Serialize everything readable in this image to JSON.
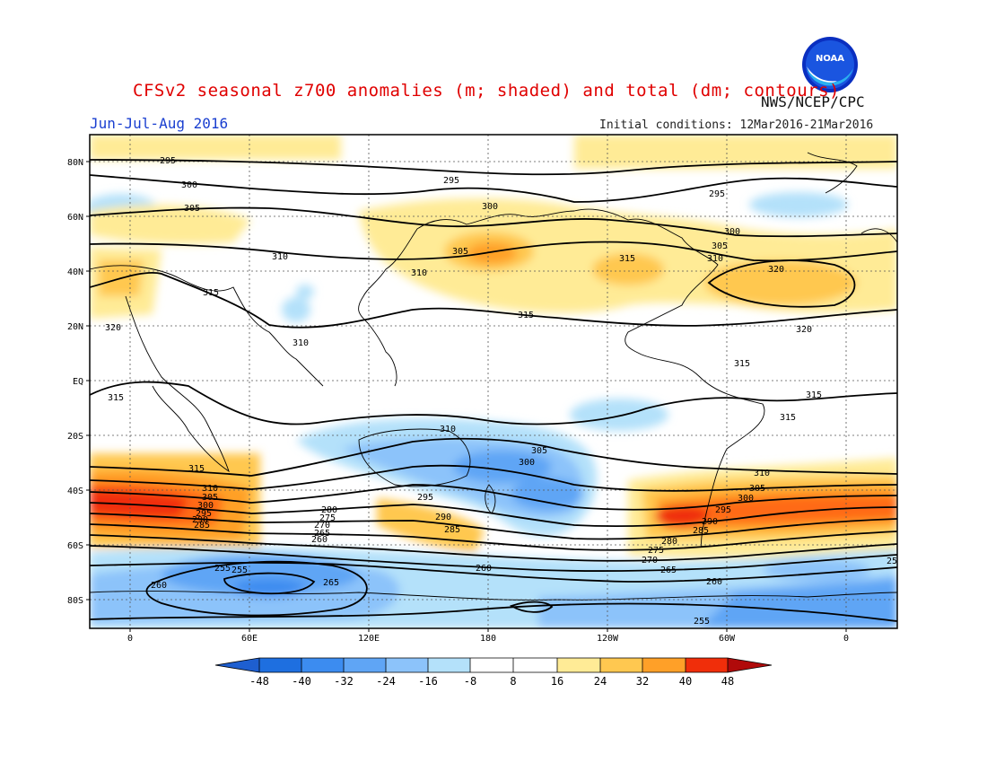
{
  "header": {
    "title": "CFSv2 seasonal z700 anomalies (m; shaded) and total (dm; contours)",
    "agency": "NWS/NCEP/CPC",
    "period": "Jun-Jul-Aug 2016",
    "initial_conditions": "Initial conditions: 12Mar2016-21Mar2016",
    "logo_text": "NOAA"
  },
  "map": {
    "lat_labels": [
      "80N",
      "60N",
      "40N",
      "20N",
      "EQ",
      "20S",
      "40S",
      "60S",
      "80S"
    ],
    "lon_labels": [
      "0",
      "60E",
      "120E",
      "180",
      "120W",
      "60W",
      "0"
    ],
    "contour_labels": [
      {
        "text": "295",
        "id": "c1"
      },
      {
        "text": "300",
        "id": "c2"
      },
      {
        "text": "305",
        "id": "c3"
      },
      {
        "text": "310",
        "id": "c4"
      },
      {
        "text": "315",
        "id": "c5"
      },
      {
        "text": "320",
        "id": "c6"
      },
      {
        "text": "310",
        "id": "c7"
      },
      {
        "text": "295",
        "id": "c8"
      },
      {
        "text": "300",
        "id": "c9"
      },
      {
        "text": "305",
        "id": "c10"
      },
      {
        "text": "310",
        "id": "c11"
      },
      {
        "text": "315",
        "id": "c12"
      },
      {
        "text": "295",
        "id": "c13"
      },
      {
        "text": "300",
        "id": "c14"
      },
      {
        "text": "305",
        "id": "c15"
      },
      {
        "text": "310",
        "id": "c16"
      },
      {
        "text": "315",
        "id": "c17"
      },
      {
        "text": "320",
        "id": "c18"
      },
      {
        "text": "320",
        "id": "c19"
      },
      {
        "text": "315",
        "id": "c20"
      },
      {
        "text": "315",
        "id": "c21"
      },
      {
        "text": "315",
        "id": "c22"
      },
      {
        "text": "315",
        "id": "c23"
      },
      {
        "text": "310",
        "id": "c24"
      },
      {
        "text": "305",
        "id": "c25"
      },
      {
        "text": "300",
        "id": "c26"
      },
      {
        "text": "295",
        "id": "c27"
      },
      {
        "text": "290",
        "id": "c28"
      },
      {
        "text": "285",
        "id": "c29"
      },
      {
        "text": "315",
        "id": "c30"
      },
      {
        "text": "310",
        "id": "c31"
      },
      {
        "text": "305",
        "id": "c32"
      },
      {
        "text": "300",
        "id": "c33"
      },
      {
        "text": "295",
        "id": "c34"
      },
      {
        "text": "290",
        "id": "c35"
      },
      {
        "text": "285",
        "id": "c36"
      },
      {
        "text": "280",
        "id": "c37"
      },
      {
        "text": "275",
        "id": "c38"
      },
      {
        "text": "270",
        "id": "c39"
      },
      {
        "text": "265",
        "id": "c40"
      },
      {
        "text": "260",
        "id": "c41"
      },
      {
        "text": "255",
        "id": "c42"
      },
      {
        "text": "265",
        "id": "c43"
      },
      {
        "text": "260",
        "id": "c44"
      },
      {
        "text": "255",
        "id": "c45"
      },
      {
        "text": "260",
        "id": "c46"
      },
      {
        "text": "310",
        "id": "c47"
      },
      {
        "text": "305",
        "id": "c48"
      },
      {
        "text": "300",
        "id": "c49"
      },
      {
        "text": "295",
        "id": "c50"
      },
      {
        "text": "290",
        "id": "c51"
      },
      {
        "text": "285",
        "id": "c52"
      },
      {
        "text": "280",
        "id": "c53"
      },
      {
        "text": "275",
        "id": "c54"
      },
      {
        "text": "270",
        "id": "c55"
      },
      {
        "text": "265",
        "id": "c56"
      },
      {
        "text": "260",
        "id": "c57"
      },
      {
        "text": "255",
        "id": "c58"
      },
      {
        "text": "25",
        "id": "c59"
      }
    ]
  },
  "colorbar": {
    "labels": [
      "-48",
      "-40",
      "-32",
      "-24",
      "-16",
      "-8",
      "8",
      "16",
      "24",
      "32",
      "40",
      "48"
    ],
    "colors": [
      "#1e6fe0",
      "#3c8cf0",
      "#5fa5f5",
      "#8cc3fa",
      "#b4e1fa",
      "#ffffff",
      "#ffeb96",
      "#ffc850",
      "#ffa028",
      "#ff6a14",
      "#f02e0a",
      "#c8140a"
    ],
    "low_arrow_color": "#1e5fd0",
    "high_arrow_color": "#b00a0a"
  }
}
